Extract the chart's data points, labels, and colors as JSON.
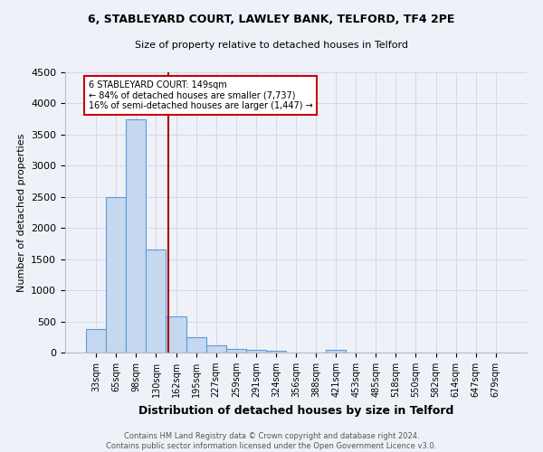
{
  "title": "6, STABLEYARD COURT, LAWLEY BANK, TELFORD, TF4 2PE",
  "subtitle": "Size of property relative to detached houses in Telford",
  "xlabel": "Distribution of detached houses by size in Telford",
  "ylabel": "Number of detached properties",
  "footer_line1": "Contains HM Land Registry data © Crown copyright and database right 2024.",
  "footer_line2": "Contains public sector information licensed under the Open Government Licence v3.0.",
  "categories": [
    "33sqm",
    "65sqm",
    "98sqm",
    "130sqm",
    "162sqm",
    "195sqm",
    "227sqm",
    "259sqm",
    "291sqm",
    "324sqm",
    "356sqm",
    "388sqm",
    "421sqm",
    "453sqm",
    "485sqm",
    "518sqm",
    "550sqm",
    "582sqm",
    "614sqm",
    "647sqm",
    "679sqm"
  ],
  "values": [
    380,
    2500,
    3750,
    1650,
    580,
    240,
    110,
    60,
    40,
    30,
    0,
    0,
    50,
    0,
    0,
    0,
    0,
    0,
    0,
    0,
    0
  ],
  "bar_color": "#c5d8f0",
  "bar_edge_color": "#5b9bd5",
  "marker_color": "#aa0000",
  "annotation_box_color": "#ffffff",
  "annotation_border_color": "#cc0000",
  "bg_color": "#eef2f8",
  "grid_color": "#d0d8e8",
  "ylim": [
    0,
    4500
  ],
  "yticks": [
    0,
    500,
    1000,
    1500,
    2000,
    2500,
    3000,
    3500,
    4000,
    4500
  ],
  "marker_label": "6 STABLEYARD COURT: 149sqm",
  "marker_line1": "← 84% of detached houses are smaller (7,737)",
  "marker_line2": "16% of semi-detached houses are larger (1,447) →"
}
